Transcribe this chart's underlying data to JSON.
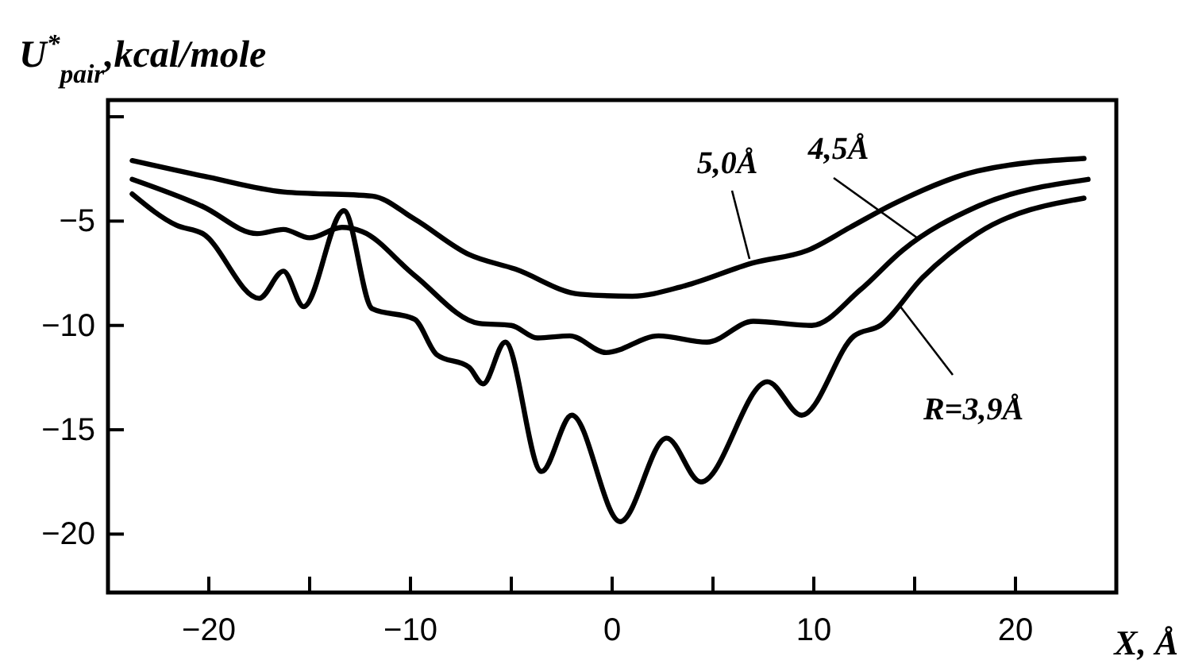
{
  "chart_data": {
    "type": "line",
    "ylabel": "U$^{*}$$_{pair}$,kcal/mole",
    "xlabel": "X, Å",
    "xlim": [
      -25,
      25
    ],
    "ylim": [
      -22.8,
      0.8
    ],
    "xticks": [
      -20,
      {
        "value": -15,
        "label": null
      },
      -10,
      {
        "value": -5,
        "label": null
      },
      0,
      {
        "value": 5,
        "label": null
      },
      10,
      {
        "value": 15,
        "label": null
      },
      20
    ],
    "yticks": [
      {
        "value": 0,
        "label": null
      },
      -5,
      -10,
      -15,
      -20
    ],
    "grid": false,
    "marker": "none",
    "line_style": "solid",
    "series": [
      {
        "name": "5,0Å",
        "color": "#000000",
        "x": [
          -23.8,
          -20,
          -16.3,
          -11.9,
          -9.8,
          -7.1,
          -4.8,
          -1.6,
          1.0,
          3.6,
          7.0,
          9.7,
          11.8,
          13.9,
          18.1,
          23.4
        ],
        "values": [
          -2.1,
          -2.9,
          -3.6,
          -3.8,
          -4.9,
          -6.6,
          -7.3,
          -8.5,
          -8.6,
          -8.1,
          -7.0,
          -6.4,
          -5.3,
          -4.2,
          -2.6,
          -2.0
        ]
      },
      {
        "name": "4,5Å",
        "color": "#000000",
        "x": [
          -23.8,
          -20.3,
          -17.6,
          -16.3,
          -15.0,
          -13.4,
          -12.4,
          -9.8,
          -6.6,
          -5.0,
          -3.7,
          -2.1,
          -0.3,
          2.3,
          4.7,
          7.0,
          9.9,
          12.3,
          14.4,
          18.1,
          23.6
        ],
        "values": [
          -3.0,
          -4.3,
          -5.6,
          -5.4,
          -5.8,
          -5.3,
          -5.5,
          -7.6,
          -9.9,
          -10.0,
          -10.6,
          -10.5,
          -11.3,
          -10.5,
          -10.8,
          -9.8,
          -10.0,
          -8.3,
          -6.4,
          -4.3,
          -3.0
        ]
      },
      {
        "name": "R=3,9Å",
        "color": "#000000",
        "x": [
          -23.8,
          -21.6,
          -20.3,
          -17.5,
          -16.3,
          -15.3,
          -13.3,
          -11.9,
          -9.8,
          -8.7,
          -7.1,
          -6.4,
          -5.3,
          -3.5,
          -2.0,
          0.4,
          2.7,
          4.4,
          7.7,
          9.4,
          12.0,
          13.3,
          15.4,
          18.1,
          23.4
        ],
        "values": [
          -3.7,
          -5.2,
          -5.6,
          -8.7,
          -7.4,
          -9.1,
          -4.5,
          -9.2,
          -9.7,
          -11.4,
          -12.0,
          -12.8,
          -10.8,
          -17.0,
          -14.3,
          -19.4,
          -15.4,
          -17.5,
          -12.7,
          -14.3,
          -10.5,
          -10.0,
          -7.7,
          -5.6,
          -3.9
        ]
      }
    ]
  }
}
